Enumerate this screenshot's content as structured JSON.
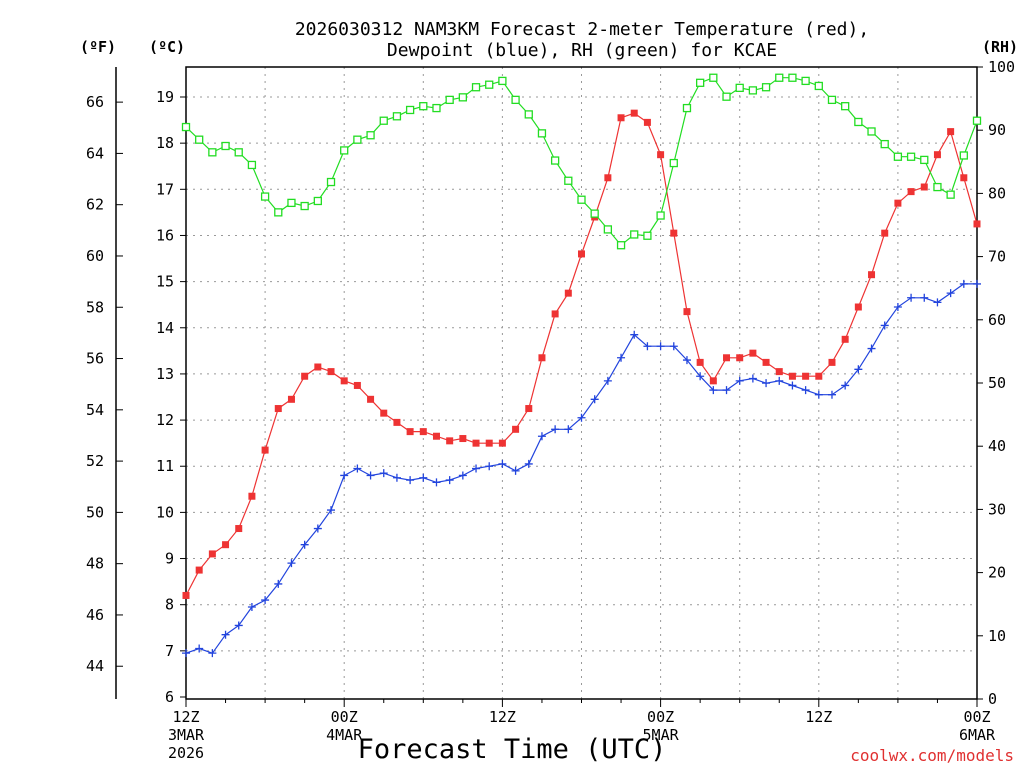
{
  "chart_data": {
    "type": "line",
    "title_line1": "2026030312 NAM3KM Forecast 2-meter Temperature (red),",
    "title_line2": "Dewpoint (blue), RH (green) for KCAE",
    "xlabel": "Forecast Time (UTC)",
    "credit": "coolwx.com/models",
    "units": {
      "f": "(ºF)",
      "c": "(ºC)",
      "rh": "(RH)"
    },
    "x_range_hours": [
      0,
      60
    ],
    "y_range_c": [
      6,
      19.6
    ],
    "y_range_rh": [
      0,
      100
    ],
    "y_ticks_c": [
      6,
      7,
      8,
      9,
      10,
      11,
      12,
      13,
      14,
      15,
      16,
      17,
      18,
      19
    ],
    "y_ticks_f": [
      44,
      46,
      48,
      50,
      52,
      54,
      56,
      58,
      60,
      62,
      64,
      66
    ],
    "y_ticks_rh": [
      0,
      10,
      20,
      30,
      40,
      50,
      60,
      70,
      80,
      90,
      100
    ],
    "x_ticks": [
      {
        "hour": 0,
        "label": "12Z",
        "date": "3MAR",
        "year": "2026"
      },
      {
        "hour": 12,
        "label": "00Z",
        "date": "4MAR",
        "year": ""
      },
      {
        "hour": 24,
        "label": "12Z",
        "date": "",
        "year": ""
      },
      {
        "hour": 36,
        "label": "00Z",
        "date": "5MAR",
        "year": ""
      },
      {
        "hour": 48,
        "label": "12Z",
        "date": "",
        "year": ""
      },
      {
        "hour": 60,
        "label": "00Z",
        "date": "6MAR",
        "year": ""
      }
    ],
    "series": [
      {
        "name": "Temperature",
        "units": "C",
        "color": "#ee3333",
        "marker": "square-filled",
        "values": [
          8.2,
          8.75,
          9.1,
          9.3,
          9.65,
          10.35,
          11.35,
          12.25,
          12.45,
          12.95,
          13.15,
          13.05,
          12.85,
          12.75,
          12.45,
          12.15,
          11.95,
          11.75,
          11.75,
          11.65,
          11.55,
          11.6,
          11.5,
          11.5,
          11.5,
          11.8,
          12.25,
          13.35,
          14.3,
          14.75,
          15.6,
          16.4,
          17.25,
          18.55,
          18.65,
          18.45,
          17.75,
          16.05,
          14.35,
          13.25,
          12.85,
          13.35,
          13.35,
          13.45,
          13.25,
          13.05,
          12.95,
          12.95,
          12.95,
          13.25,
          13.75,
          14.45,
          15.15,
          16.05,
          16.7,
          16.95,
          17.05,
          17.75,
          18.25,
          17.25,
          16.25
        ]
      },
      {
        "name": "Dewpoint",
        "units": "C",
        "color": "#2244dd",
        "marker": "plus",
        "values": [
          6.95,
          7.05,
          6.95,
          7.35,
          7.55,
          7.95,
          8.1,
          8.45,
          8.9,
          9.3,
          9.65,
          10.05,
          10.8,
          10.95,
          10.8,
          10.85,
          10.75,
          10.7,
          10.75,
          10.65,
          10.7,
          10.8,
          10.95,
          11.0,
          11.05,
          10.9,
          11.05,
          11.65,
          11.8,
          11.8,
          12.05,
          12.45,
          12.85,
          13.35,
          13.85,
          13.6,
          13.6,
          13.6,
          13.3,
          12.95,
          12.65,
          12.65,
          12.85,
          12.9,
          12.8,
          12.85,
          12.75,
          12.65,
          12.55,
          12.55,
          12.75,
          13.1,
          13.55,
          14.05,
          14.45,
          14.65,
          14.65,
          14.55,
          14.75,
          14.95,
          14.95
        ]
      },
      {
        "name": "RH",
        "units": "%",
        "color": "#22dd22",
        "marker": "square-open",
        "values": [
          90.5,
          88.5,
          86.5,
          87.5,
          86.5,
          84.5,
          79.5,
          77,
          78.5,
          78,
          78.8,
          81.8,
          86.8,
          88.5,
          89.2,
          91.5,
          92.2,
          93.2,
          93.8,
          93.5,
          94.8,
          95.2,
          96.8,
          97.2,
          97.8,
          94.8,
          92.5,
          89.5,
          85.2,
          82,
          79,
          76.8,
          74.3,
          71.8,
          73.5,
          73.3,
          76.5,
          84.8,
          93.5,
          97.5,
          98.3,
          95.3,
          96.7,
          96.3,
          96.8,
          98.3,
          98.3,
          97.8,
          97,
          94.8,
          93.8,
          91.3,
          89.8,
          87.8,
          85.8,
          85.8,
          85.3,
          81,
          79.8,
          86,
          91.5
        ]
      }
    ]
  }
}
